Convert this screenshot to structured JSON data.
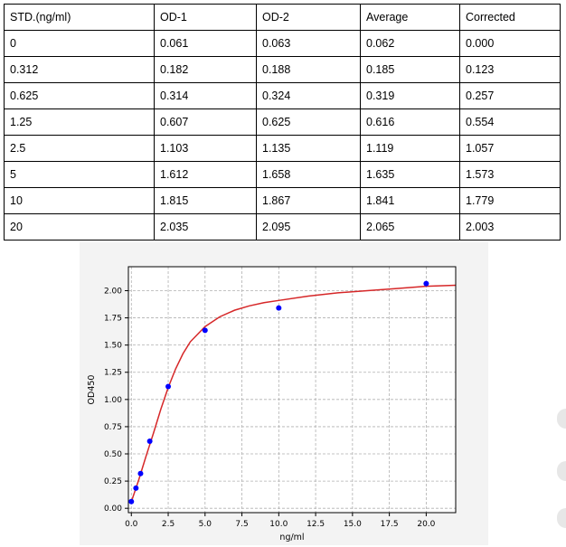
{
  "table": {
    "headers": [
      "STD.(ng/ml)",
      "OD-1",
      "OD-2",
      "Average",
      "Corrected"
    ],
    "rows": [
      [
        "0",
        "0.061",
        "0.063",
        "0.062",
        "0.000"
      ],
      [
        "0.312",
        "0.182",
        "0.188",
        "0.185",
        "0.123"
      ],
      [
        "0.625",
        "0.314",
        "0.324",
        "0.319",
        "0.257"
      ],
      [
        "1.25",
        "0.607",
        "0.625",
        "0.616",
        "0.554"
      ],
      [
        "2.5",
        "1.103",
        "1.135",
        "1.119",
        "1.057"
      ],
      [
        "5",
        "1.612",
        "1.658",
        "1.635",
        "1.573"
      ],
      [
        "10",
        "1.815",
        "1.867",
        "1.841",
        "1.779"
      ],
      [
        "20",
        "2.035",
        "2.095",
        "2.065",
        "2.003"
      ]
    ]
  },
  "chart_data": {
    "type": "scatter",
    "xlabel": "ng/ml",
    "ylabel": "OD450",
    "xlim": [
      -0.2,
      22
    ],
    "ylim": [
      -0.04,
      2.22
    ],
    "xticks": [
      0.0,
      2.5,
      5.0,
      7.5,
      10.0,
      12.5,
      15.0,
      17.5,
      20.0
    ],
    "xtick_labels": [
      "0.0",
      "2.5",
      "5.0",
      "7.5",
      "10.0",
      "12.5",
      "15.0",
      "17.5",
      "20.0"
    ],
    "yticks": [
      0.0,
      0.25,
      0.5,
      0.75,
      1.0,
      1.25,
      1.5,
      1.75,
      2.0
    ],
    "ytick_labels": [
      "0.00",
      "0.25",
      "0.50",
      "0.75",
      "1.00",
      "1.25",
      "1.50",
      "1.75",
      "2.00"
    ],
    "grid": true,
    "points": {
      "x": [
        0,
        0.312,
        0.625,
        1.25,
        2.5,
        5,
        10,
        20
      ],
      "y": [
        0.062,
        0.185,
        0.319,
        0.616,
        1.119,
        1.635,
        1.841,
        2.065
      ],
      "color": "#0000ff"
    },
    "fit_curve": {
      "color": "#d62728",
      "x": [
        0,
        0.25,
        0.5,
        0.75,
        1,
        1.5,
        2,
        2.5,
        3,
        3.5,
        4,
        5,
        6,
        7,
        8,
        9,
        10,
        12,
        14,
        16,
        18,
        20,
        22
      ],
      "y": [
        0.06,
        0.16,
        0.26,
        0.37,
        0.48,
        0.69,
        0.91,
        1.11,
        1.28,
        1.42,
        1.53,
        1.67,
        1.76,
        1.82,
        1.86,
        1.89,
        1.91,
        1.95,
        1.98,
        2.0,
        2.02,
        2.04,
        2.05
      ]
    }
  }
}
